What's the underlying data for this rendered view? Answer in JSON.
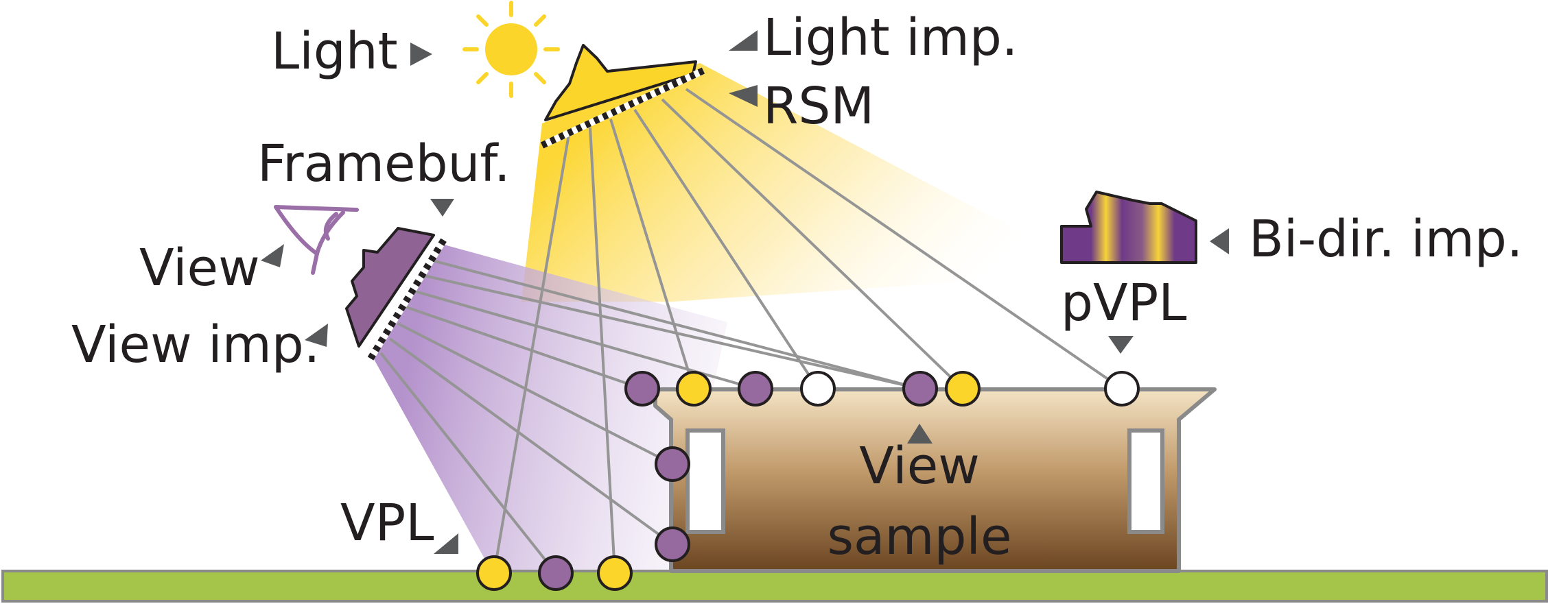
{
  "labels": {
    "light": "Light",
    "light_imp": "Light imp.",
    "rsm": "RSM",
    "framebuf": "Framebuf.",
    "view": "View",
    "view_imp": "View imp.",
    "bi_dir_imp": "Bi-dir. imp.",
    "pvpl": "pVPL",
    "view_sample_line1": "View",
    "view_sample_line2": "sample",
    "vpl": "VPL"
  },
  "colors": {
    "vpl_yellow": "#fcd52b",
    "vpl_purple": "#96699f",
    "sun": "#fcd52b",
    "ground": "#a5c54a",
    "box_top": "#f3e3c4",
    "box_bottom": "#6b4521",
    "outline": "#231f20",
    "ray": "#959595",
    "arrow": "#58595b",
    "eye": "#9a6ea7"
  },
  "icons": [
    "sun-icon",
    "light-source-icon",
    "eye-icon",
    "camera-icon",
    "bi-dir-importance-icon"
  ]
}
